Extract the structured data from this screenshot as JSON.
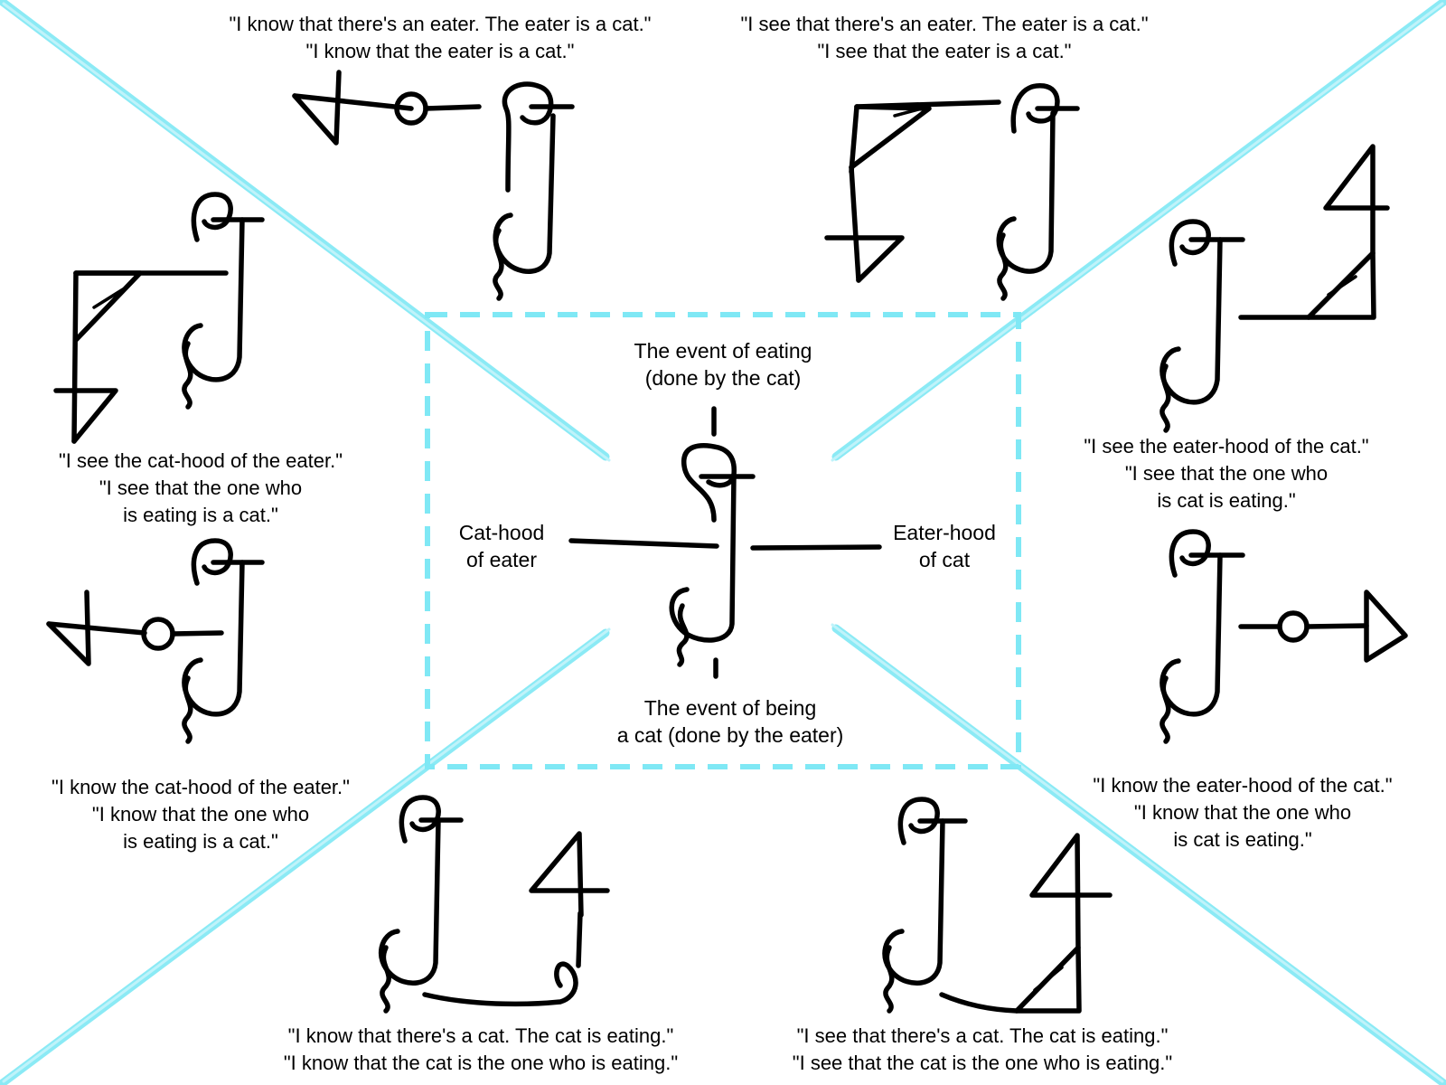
{
  "colors": {
    "guide": "#7fe8f5",
    "ink": "#000000",
    "background": "#ffffff"
  },
  "center": {
    "top_label": [
      "The event of eating",
      "(done by the cat)"
    ],
    "bottom_label": [
      "The event of being",
      "a cat (done by the eater)"
    ],
    "left_label": [
      "Cat-hood",
      "of eater"
    ],
    "right_label": [
      "Eater-hood",
      "of cat"
    ]
  },
  "captions": {
    "top_left": [
      "\"I know that there's an eater. The eater is a cat.\"",
      "\"I know that the eater is a cat.\""
    ],
    "top_right": [
      "\"I see that there's an eater. The eater is a cat.\"",
      "\"I see that the eater is a cat.\""
    ],
    "left_upper": [
      "\"I see the cat-hood of the eater.\"",
      "\"I see that the one who",
      "is eating is a cat.\""
    ],
    "left_lower": [
      "\"I know the cat-hood of the eater.\"",
      "\"I know that the one who",
      "is eating is a cat.\""
    ],
    "right_upper": [
      "\"I see the eater-hood of the cat.\"",
      "\"I see that the one who",
      "is cat is eating.\""
    ],
    "right_lower": [
      "\"I know the eater-hood of the cat.\"",
      "\"I know that the one who",
      "is cat is eating.\""
    ],
    "bottom_left": [
      "\"I know that there's a cat. The cat is eating.\"",
      "\"I know that the cat is the one who is eating.\""
    ],
    "bottom_right": [
      "\"I see that there's a cat. The cat is eating.\"",
      "\"I see that the cat is the one who is eating.\""
    ]
  },
  "glyph_names": [
    "cat-eater-core-glyph",
    "know-marker-glyph",
    "see-marker-glyph",
    "four-marker-glyph"
  ]
}
